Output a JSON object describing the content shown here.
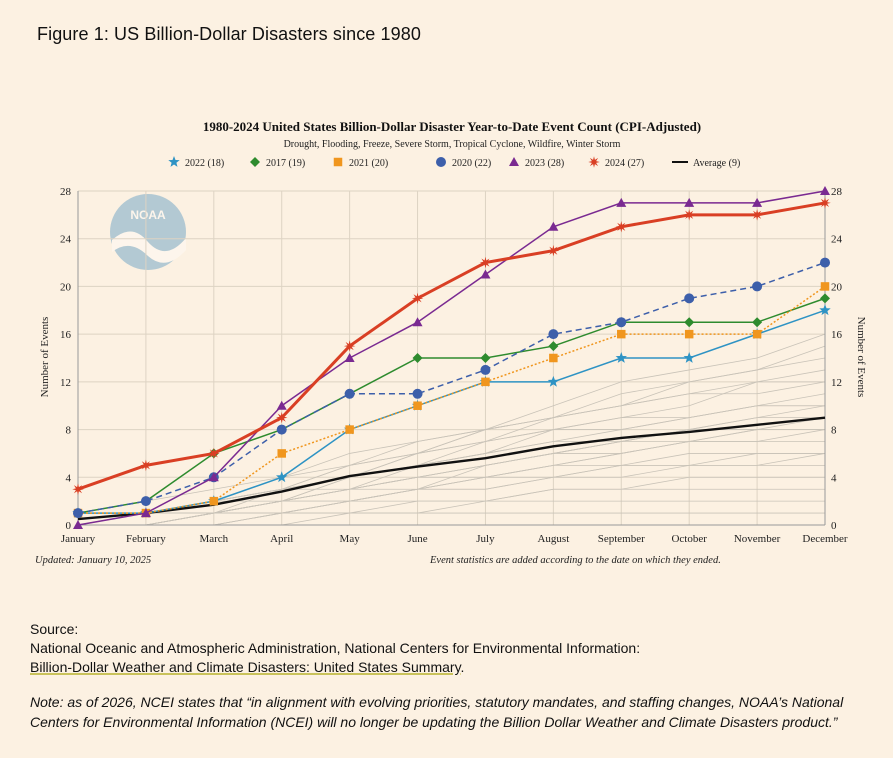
{
  "figure_title": "Figure 1: US Billion-Dollar Disasters since 1980",
  "logo_text": "NOAA",
  "footer": {
    "updated": "Updated: January 10, 2025",
    "note": "Event statistics are added according to the date on which they ended."
  },
  "source": {
    "label": "Source:",
    "line1": "National Oceanic and Atmospheric Administration, National Centers for Environmental Information:",
    "link": "Billion-Dollar Weather and Climate Disasters: United States Summary",
    "link_tail": "."
  },
  "note": {
    "prefix": "Note: as of 2026, NCEI states that “",
    "line1": "in alignment with evolving priorities, statutory mandates, and staffing changes, NOAA’s National",
    "line2": "Centers for Environmental Information (NCEI) will no longer be updating the Billion Dollar Weather and Climate Disasters product.”"
  },
  "chart_data": {
    "type": "line",
    "title": "1980-2024 United States Billion-Dollar Disaster Year-to-Date Event Count (CPI-Adjusted)",
    "subtitle": "Drought, Flooding, Freeze, Severe Storm, Tropical Cyclone, Wildfire, Winter Storm",
    "ylabel": "Number of Events",
    "ylabel_right": "Number of Events",
    "ylim": [
      0,
      28
    ],
    "yticks": [
      0,
      4,
      8,
      12,
      16,
      20,
      24,
      28
    ],
    "grid": true,
    "legend_position": "top",
    "categories": [
      "January",
      "February",
      "March",
      "April",
      "May",
      "June",
      "July",
      "August",
      "September",
      "October",
      "November",
      "December"
    ],
    "series": [
      {
        "name": "2022 (18)",
        "color": "#2e93c4",
        "marker": "star",
        "dash": "solid",
        "values": [
          1,
          1,
          2,
          4,
          8,
          10,
          12,
          12,
          14,
          14,
          16,
          18
        ]
      },
      {
        "name": "2017 (19)",
        "color": "#2e8b2e",
        "marker": "diamond",
        "dash": "solid",
        "values": [
          1,
          2,
          6,
          8,
          11,
          14,
          14,
          15,
          17,
          17,
          17,
          19
        ]
      },
      {
        "name": "2021 (20)",
        "color": "#f0961e",
        "marker": "square",
        "dash": "dotted",
        "values": [
          1,
          1,
          2,
          6,
          8,
          10,
          12,
          14,
          16,
          16,
          16,
          20
        ]
      },
      {
        "name": "2020 (22)",
        "color": "#3d5faa",
        "marker": "circle",
        "dash": "dashed",
        "values": [
          1,
          2,
          4,
          8,
          11,
          11,
          13,
          16,
          17,
          19,
          20,
          22
        ]
      },
      {
        "name": "2023 (28)",
        "color": "#7a2a91",
        "marker": "triangle",
        "dash": "solid",
        "values": [
          0,
          1,
          4,
          10,
          14,
          17,
          21,
          25,
          27,
          27,
          27,
          28
        ]
      },
      {
        "name": "2024 (27)",
        "color": "#d93f24",
        "marker": "asterisk",
        "dash": "solid",
        "values": [
          3,
          5,
          6,
          9,
          15,
          19,
          22,
          23,
          25,
          26,
          26,
          27
        ]
      },
      {
        "name": "Average (9)",
        "color": "#111111",
        "marker": "none",
        "dash": "solid",
        "values": [
          0.5,
          1.0,
          1.7,
          2.8,
          4.1,
          4.9,
          5.6,
          6.6,
          7.3,
          7.8,
          8.4,
          9.0
        ]
      }
    ],
    "background_years": [
      [
        0,
        0,
        1,
        1,
        2,
        3,
        3,
        4,
        4,
        5,
        5,
        6
      ],
      [
        0,
        1,
        1,
        2,
        2,
        3,
        4,
        5,
        6,
        7,
        7,
        8
      ],
      [
        0,
        0,
        0,
        1,
        1,
        2,
        2,
        3,
        3,
        4,
        4,
        4
      ],
      [
        1,
        1,
        2,
        3,
        4,
        5,
        6,
        7,
        8,
        9,
        10,
        11
      ],
      [
        0,
        1,
        2,
        3,
        5,
        6,
        7,
        8,
        9,
        9,
        10,
        10
      ],
      [
        0,
        0,
        1,
        1,
        2,
        2,
        2,
        3,
        3,
        3,
        3,
        3
      ],
      [
        0,
        1,
        1,
        2,
        3,
        4,
        5,
        6,
        7,
        8,
        9,
        10
      ],
      [
        1,
        1,
        2,
        4,
        6,
        7,
        8,
        9,
        10,
        11,
        12,
        12
      ],
      [
        0,
        0,
        1,
        2,
        4,
        5,
        7,
        9,
        11,
        12,
        13,
        14
      ],
      [
        0,
        1,
        2,
        3,
        4,
        6,
        8,
        10,
        12,
        13,
        14,
        16
      ],
      [
        0,
        0,
        1,
        2,
        3,
        5,
        6,
        8,
        9,
        10,
        12,
        13
      ],
      [
        0,
        1,
        1,
        2,
        3,
        4,
        4,
        5,
        5,
        6,
        6,
        6
      ],
      [
        0,
        0,
        0,
        1,
        1,
        1,
        2,
        2,
        2,
        2,
        2,
        2
      ],
      [
        1,
        2,
        3,
        4,
        5,
        6,
        7,
        8,
        8,
        9,
        10,
        10
      ],
      [
        0,
        0,
        1,
        1,
        2,
        3,
        4,
        4,
        5,
        5,
        5,
        5
      ],
      [
        0,
        1,
        2,
        3,
        3,
        4,
        5,
        6,
        7,
        7,
        8,
        9
      ],
      [
        0,
        0,
        1,
        3,
        5,
        7,
        8,
        9,
        10,
        11,
        11,
        12
      ],
      [
        0,
        0,
        0,
        0,
        1,
        1,
        1,
        1,
        1,
        1,
        1,
        1
      ],
      [
        1,
        1,
        1,
        2,
        3,
        4,
        5,
        6,
        6,
        7,
        7,
        7
      ],
      [
        0,
        1,
        1,
        2,
        4,
        6,
        8,
        9,
        10,
        12,
        13,
        15
      ],
      [
        0,
        0,
        1,
        2,
        2,
        3,
        3,
        4,
        5,
        5,
        6,
        6
      ],
      [
        0,
        0,
        0,
        1,
        2,
        3,
        5,
        6,
        7,
        8,
        9,
        9
      ],
      [
        1,
        1,
        2,
        2,
        3,
        3,
        4,
        5,
        6,
        7,
        8,
        8
      ],
      [
        0,
        1,
        2,
        3,
        4,
        5,
        6,
        7,
        7,
        8,
        8,
        8
      ]
    ]
  }
}
